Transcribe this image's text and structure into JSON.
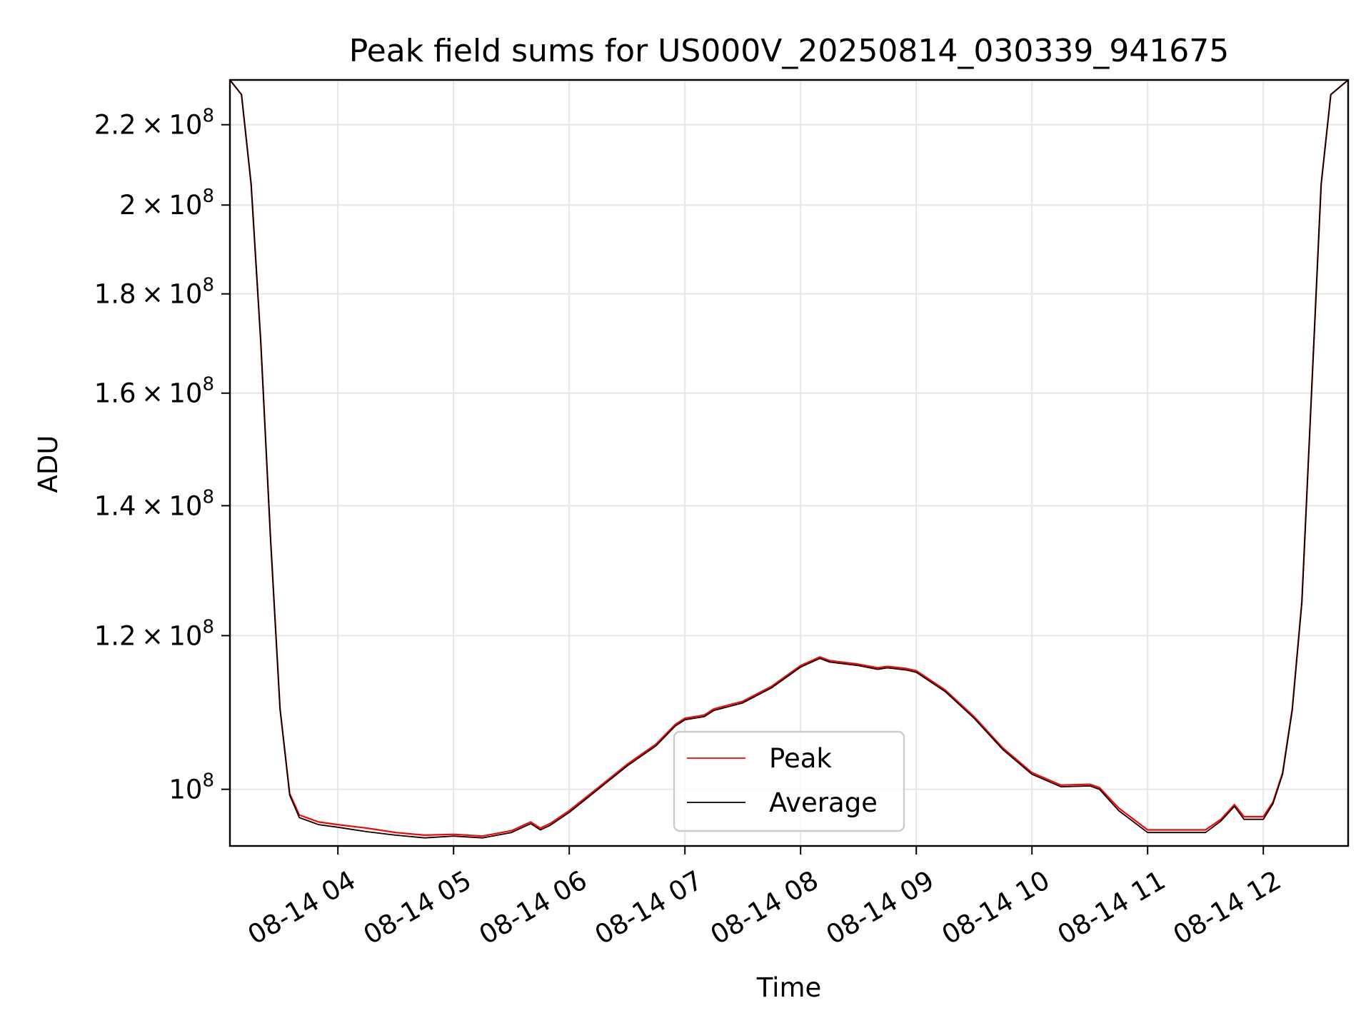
{
  "chart_data": {
    "type": "line",
    "title": "Peak field sums for US000V_20250814_030339_941675",
    "xlabel": "Time",
    "ylabel": "ADU",
    "yscale": "log",
    "grid": true,
    "legend_placement": "lower center",
    "xlim": [
      "2025-08-14 03:04",
      "2025-08-14 12:44"
    ],
    "ylim": [
      93500000,
      232000000
    ],
    "x_ticks": [
      {
        "t": "2025-08-14 04:00",
        "label": "08-14 04"
      },
      {
        "t": "2025-08-14 05:00",
        "label": "08-14 05"
      },
      {
        "t": "2025-08-14 06:00",
        "label": "08-14 06"
      },
      {
        "t": "2025-08-14 07:00",
        "label": "08-14 07"
      },
      {
        "t": "2025-08-14 08:00",
        "label": "08-14 08"
      },
      {
        "t": "2025-08-14 09:00",
        "label": "08-14 09"
      },
      {
        "t": "2025-08-14 10:00",
        "label": "08-14 10"
      },
      {
        "t": "2025-08-14 11:00",
        "label": "08-14 11"
      },
      {
        "t": "2025-08-14 12:00",
        "label": "08-14 12"
      }
    ],
    "y_ticks": [
      {
        "v": 100000000,
        "mant": "",
        "exp": "8"
      },
      {
        "v": 120000000,
        "mant": "1.2",
        "exp": "8"
      },
      {
        "v": 140000000,
        "mant": "1.4",
        "exp": "8"
      },
      {
        "v": 160000000,
        "mant": "1.6",
        "exp": "8"
      },
      {
        "v": 180000000,
        "mant": "1.8",
        "exp": "8"
      },
      {
        "v": 200000000,
        "mant": "2",
        "exp": "8"
      },
      {
        "v": 220000000,
        "mant": "2.2",
        "exp": "8"
      }
    ],
    "x": [
      "2025-08-14 03:04",
      "2025-08-14 03:10",
      "2025-08-14 03:15",
      "2025-08-14 03:20",
      "2025-08-14 03:25",
      "2025-08-14 03:30",
      "2025-08-14 03:35",
      "2025-08-14 03:40",
      "2025-08-14 03:50",
      "2025-08-14 04:00",
      "2025-08-14 04:15",
      "2025-08-14 04:30",
      "2025-08-14 04:45",
      "2025-08-14 05:00",
      "2025-08-14 05:15",
      "2025-08-14 05:30",
      "2025-08-14 05:40",
      "2025-08-14 05:45",
      "2025-08-14 05:50",
      "2025-08-14 06:00",
      "2025-08-14 06:15",
      "2025-08-14 06:30",
      "2025-08-14 06:45",
      "2025-08-14 06:55",
      "2025-08-14 07:00",
      "2025-08-14 07:10",
      "2025-08-14 07:15",
      "2025-08-14 07:30",
      "2025-08-14 07:45",
      "2025-08-14 08:00",
      "2025-08-14 08:10",
      "2025-08-14 08:15",
      "2025-08-14 08:30",
      "2025-08-14 08:40",
      "2025-08-14 08:45",
      "2025-08-14 08:55",
      "2025-08-14 09:00",
      "2025-08-14 09:15",
      "2025-08-14 09:30",
      "2025-08-14 09:45",
      "2025-08-14 10:00",
      "2025-08-14 10:15",
      "2025-08-14 10:30",
      "2025-08-14 10:35",
      "2025-08-14 10:45",
      "2025-08-14 11:00",
      "2025-08-14 11:15",
      "2025-08-14 11:30",
      "2025-08-14 11:38",
      "2025-08-14 11:45",
      "2025-08-14 11:50",
      "2025-08-14 12:00",
      "2025-08-14 12:05",
      "2025-08-14 12:10",
      "2025-08-14 12:15",
      "2025-08-14 12:20",
      "2025-08-14 12:25",
      "2025-08-14 12:30",
      "2025-08-14 12:35",
      "2025-08-14 12:44"
    ],
    "series": [
      {
        "name": "Peak",
        "color": "#ff0000",
        "values": [
          232000000,
          228000000,
          205000000,
          170000000,
          135000000,
          110000000,
          99500000,
          97000000,
          96200000,
          95900000,
          95500000,
          95000000,
          94700000,
          94800000,
          94600000,
          95200000,
          96200000,
          95500000,
          96000000,
          97500000,
          100200000,
          103000000,
          105500000,
          108000000,
          108800000,
          109200000,
          110000000,
          111000000,
          113000000,
          115800000,
          117000000,
          116500000,
          116000000,
          115500000,
          115700000,
          115400000,
          115100000,
          112500000,
          109000000,
          105000000,
          102000000,
          100500000,
          100600000,
          100200000,
          97800000,
          95300000,
          95300000,
          95300000,
          96500000,
          98200000,
          96800000,
          96800000,
          98500000,
          102000000,
          110000000,
          125000000,
          160000000,
          205000000,
          228000000,
          232000000
        ]
      },
      {
        "name": "Average",
        "color": "#000000",
        "values": [
          232000000,
          228000000,
          205000000,
          170000000,
          135000000,
          110000000,
          99300000,
          96700000,
          95900000,
          95600000,
          95100000,
          94700000,
          94400000,
          94600000,
          94400000,
          95000000,
          96000000,
          95300000,
          95800000,
          97300000,
          100000000,
          102800000,
          105300000,
          107800000,
          108600000,
          109000000,
          109800000,
          110800000,
          112800000,
          115600000,
          116800000,
          116300000,
          115800000,
          115300000,
          115500000,
          115200000,
          114900000,
          112300000,
          108800000,
          104800000,
          101800000,
          100300000,
          100400000,
          100000000,
          97500000,
          95000000,
          95000000,
          95000000,
          96300000,
          98000000,
          96500000,
          96500000,
          98300000,
          101800000,
          109800000,
          124800000,
          160000000,
          205000000,
          228000000,
          232000000
        ]
      }
    ]
  }
}
